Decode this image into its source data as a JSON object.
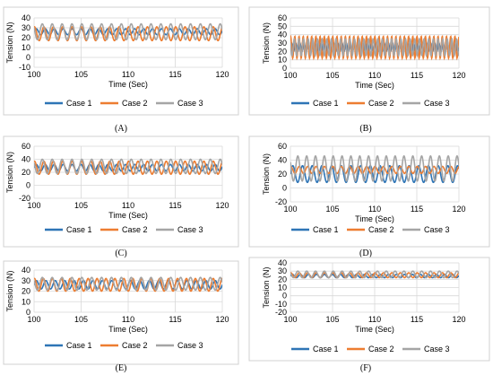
{
  "chart_data": [
    {
      "panel": "(A)",
      "type": "line",
      "xlabel": "Time (Sec)",
      "ylabel": "Tension (N)",
      "xlim": [
        100,
        120
      ],
      "ylim": [
        -10,
        40
      ],
      "xticks": [
        100,
        105,
        110,
        115,
        120
      ],
      "yticks": [
        -10,
        0,
        10,
        20,
        30,
        40
      ],
      "grid": true,
      "legend": "bottom",
      "series": [
        {
          "name": "Case 1",
          "color": "#2e75b6",
          "mean": 26,
          "amplitude": 3,
          "period": 0.95
        },
        {
          "name": "Case 2",
          "color": "#ed7d31",
          "mean": 24,
          "amplitude": 7,
          "period": 1.0
        },
        {
          "name": "Case 3",
          "color": "#a5a5a5",
          "mean": 26,
          "amplitude": 8,
          "period": 1.05
        }
      ]
    },
    {
      "panel": "(B)",
      "type": "line",
      "xlabel": "Time (Sec)",
      "ylabel": "Tension (N)",
      "xlim": [
        100,
        120
      ],
      "ylim": [
        0,
        60
      ],
      "xticks": [
        100,
        105,
        110,
        115,
        120
      ],
      "yticks": [
        0,
        10,
        20,
        30,
        40,
        50,
        60
      ],
      "grid": true,
      "legend": "bottom",
      "series": [
        {
          "name": "Case 1",
          "color": "#2e75b6",
          "mean": 25,
          "amplitude": 5,
          "period": 0.5
        },
        {
          "name": "Case 2",
          "color": "#ed7d31",
          "mean": 25,
          "amplitude": 13,
          "period": 0.5
        },
        {
          "name": "Case 3",
          "color": "#a5a5a5",
          "mean": 25,
          "amplitude": 10,
          "period": 0.55
        }
      ]
    },
    {
      "panel": "(C)",
      "type": "line",
      "xlabel": "Time (Sec)",
      "ylabel": "Tension (N)",
      "xlim": [
        100,
        120
      ],
      "ylim": [
        -20,
        60
      ],
      "xticks": [
        100,
        105,
        110,
        115,
        120
      ],
      "yticks": [
        -20,
        0,
        20,
        40,
        60
      ],
      "grid": true,
      "legend": "bottom",
      "series": [
        {
          "name": "Case 1",
          "color": "#2e75b6",
          "mean": 27,
          "amplitude": 5,
          "period": 0.95
        },
        {
          "name": "Case 2",
          "color": "#ed7d31",
          "mean": 27,
          "amplitude": 10,
          "period": 1.0
        },
        {
          "name": "Case 3",
          "color": "#a5a5a5",
          "mean": 29,
          "amplitude": 11,
          "period": 1.05
        }
      ]
    },
    {
      "panel": "(D)",
      "type": "line",
      "xlabel": "Time (Sec)",
      "ylabel": "Tension (N)",
      "xlim": [
        100,
        120
      ],
      "ylim": [
        -20,
        60
      ],
      "xticks": [
        100,
        105,
        110,
        115,
        120
      ],
      "yticks": [
        -20,
        0,
        20,
        40,
        60
      ],
      "grid": true,
      "legend": "bottom",
      "series": [
        {
          "name": "Case 1",
          "color": "#2e75b6",
          "mean": 20,
          "amplitude": 12,
          "period": 1.15
        },
        {
          "name": "Case 2",
          "color": "#ed7d31",
          "mean": 26,
          "amplitude": 5,
          "period": 1.0
        },
        {
          "name": "Case 3",
          "color": "#a5a5a5",
          "mean": 28,
          "amplitude": 18,
          "period": 1.05
        }
      ]
    },
    {
      "panel": "(E)",
      "type": "line",
      "xlabel": "Time (Sec)",
      "ylabel": "Tension (N)",
      "xlim": [
        100,
        120
      ],
      "ylim": [
        0,
        40
      ],
      "xticks": [
        100,
        105,
        110,
        115,
        120
      ],
      "yticks": [
        0,
        10,
        20,
        30,
        40
      ],
      "grid": true,
      "legend": "bottom",
      "series": [
        {
          "name": "Case 1",
          "color": "#2e75b6",
          "mean": 26,
          "amplitude": 4,
          "period": 1.0
        },
        {
          "name": "Case 2",
          "color": "#ed7d31",
          "mean": 26,
          "amplitude": 6,
          "period": 0.95
        },
        {
          "name": "Case 3",
          "color": "#a5a5a5",
          "mean": 27,
          "amplitude": 6,
          "period": 1.05
        }
      ]
    },
    {
      "panel": "(F)",
      "type": "line",
      "xlabel": "Time (Sec)",
      "ylabel": "Tension (N)",
      "xlim": [
        100,
        120
      ],
      "ylim": [
        -20,
        40
      ],
      "xticks": [
        100,
        105,
        110,
        115,
        120
      ],
      "yticks": [
        -20,
        -10,
        0,
        10,
        20,
        30,
        40
      ],
      "grid": true,
      "legend": "bottom",
      "series": [
        {
          "name": "Case 1",
          "color": "#2e75b6",
          "mean": 24,
          "amplitude": 2,
          "period": 0.95
        },
        {
          "name": "Case 2",
          "color": "#ed7d31",
          "mean": 25,
          "amplitude": 3,
          "period": 1.0
        },
        {
          "name": "Case 3",
          "color": "#a5a5a5",
          "mean": 26,
          "amplitude": 4,
          "period": 1.05
        }
      ]
    }
  ]
}
